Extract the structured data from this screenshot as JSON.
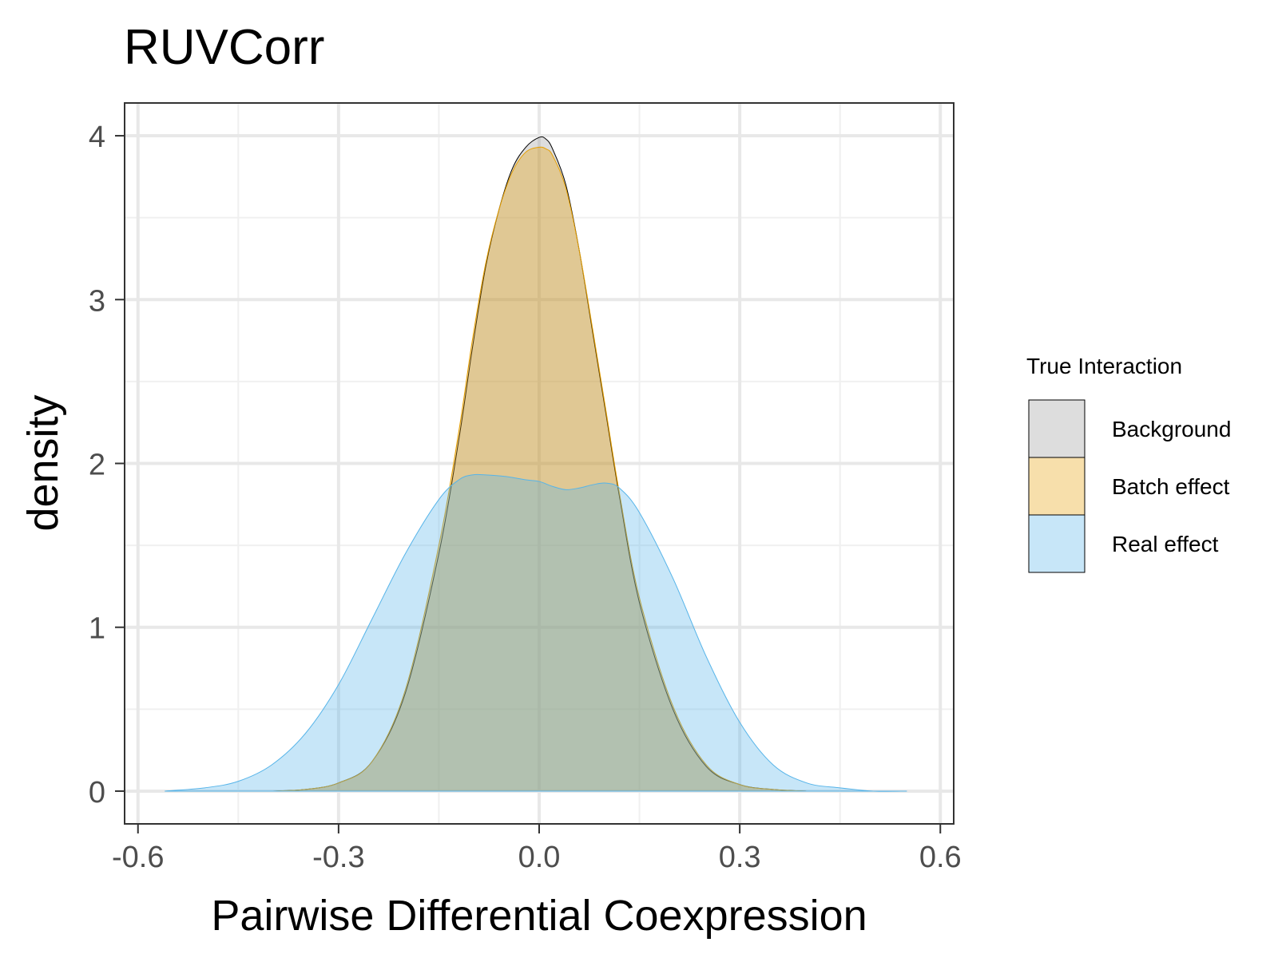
{
  "chart_data": {
    "type": "area",
    "title": "RUVCorr",
    "xlabel": "Pairwise Differential Coexpression",
    "ylabel": "density",
    "xlim": [
      -0.62,
      0.62
    ],
    "ylim": [
      -0.2,
      4.2
    ],
    "x_ticks": [
      -0.6,
      -0.3,
      0.0,
      0.3,
      0.6
    ],
    "x_tick_labels": [
      "-0.6",
      "-0.3",
      "0.0",
      "0.3",
      "0.6"
    ],
    "y_ticks": [
      0,
      1,
      2,
      3,
      4
    ],
    "y_tick_labels": [
      "0",
      "1",
      "2",
      "3",
      "4"
    ],
    "grid": true,
    "legend": {
      "title": "True Interaction",
      "position": "right"
    },
    "series": [
      {
        "name": "Background",
        "fill": "#999999",
        "stroke": "#000000",
        "x": [
          -0.4,
          -0.35,
          -0.3,
          -0.25,
          -0.2,
          -0.15,
          -0.12,
          -0.1,
          -0.08,
          -0.06,
          -0.04,
          -0.02,
          0.0,
          0.01,
          0.02,
          0.04,
          0.06,
          0.08,
          0.1,
          0.12,
          0.15,
          0.2,
          0.25,
          0.3,
          0.35,
          0.4
        ],
        "y": [
          0.0,
          0.01,
          0.05,
          0.18,
          0.6,
          1.45,
          2.15,
          2.7,
          3.2,
          3.55,
          3.8,
          3.93,
          3.99,
          3.98,
          3.92,
          3.7,
          3.3,
          2.8,
          2.3,
          1.8,
          1.15,
          0.5,
          0.15,
          0.04,
          0.01,
          0.0
        ]
      },
      {
        "name": "Batch effect",
        "fill": "#E69F00",
        "stroke": "#E69F00",
        "x": [
          -0.4,
          -0.35,
          -0.3,
          -0.25,
          -0.2,
          -0.15,
          -0.12,
          -0.1,
          -0.08,
          -0.06,
          -0.04,
          -0.02,
          0.0,
          0.01,
          0.02,
          0.04,
          0.06,
          0.08,
          0.1,
          0.12,
          0.15,
          0.2,
          0.25,
          0.3,
          0.35,
          0.4
        ],
        "y": [
          0.0,
          0.01,
          0.05,
          0.18,
          0.62,
          1.5,
          2.2,
          2.75,
          3.22,
          3.55,
          3.78,
          3.9,
          3.93,
          3.92,
          3.88,
          3.68,
          3.3,
          2.82,
          2.32,
          1.82,
          1.18,
          0.52,
          0.16,
          0.04,
          0.01,
          0.0
        ]
      },
      {
        "name": "Real effect",
        "fill": "#56B4E9",
        "stroke": "#56B4E9",
        "x": [
          -0.56,
          -0.5,
          -0.45,
          -0.4,
          -0.35,
          -0.3,
          -0.25,
          -0.2,
          -0.15,
          -0.12,
          -0.1,
          -0.08,
          -0.05,
          -0.02,
          0.0,
          0.02,
          0.04,
          0.06,
          0.08,
          0.1,
          0.12,
          0.15,
          0.2,
          0.25,
          0.3,
          0.35,
          0.4,
          0.45,
          0.5,
          0.55
        ],
        "y": [
          0.0,
          0.02,
          0.06,
          0.16,
          0.35,
          0.65,
          1.05,
          1.45,
          1.78,
          1.9,
          1.93,
          1.93,
          1.92,
          1.9,
          1.89,
          1.86,
          1.84,
          1.85,
          1.87,
          1.88,
          1.85,
          1.7,
          1.3,
          0.82,
          0.42,
          0.16,
          0.05,
          0.02,
          0.0,
          0.0
        ]
      }
    ]
  },
  "colors": {
    "panel_border": "#333333",
    "grid_major": "#e8e8e8",
    "grid_minor": "#f0f0f0",
    "tick_text": "#4d4d4d"
  }
}
